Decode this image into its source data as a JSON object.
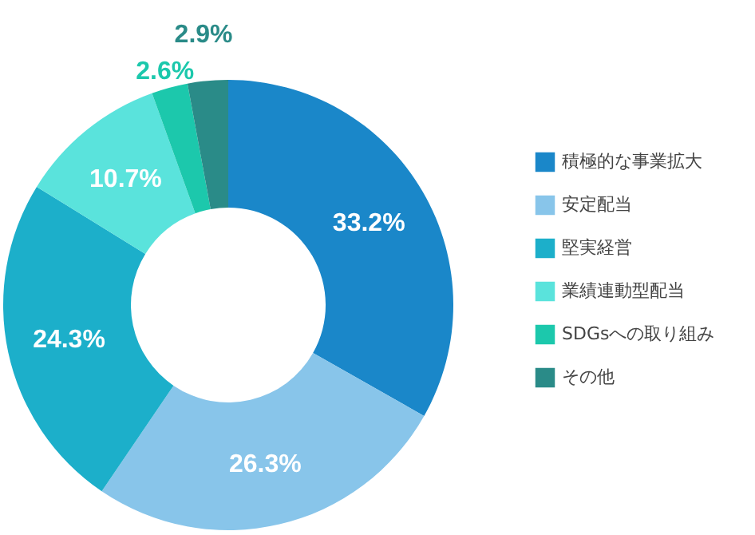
{
  "chart_data": {
    "type": "donut",
    "categories": [
      "積極的な事業拡大",
      "安定配当",
      "堅実経営",
      "業績連動型配当",
      "SDGsへの取り組み",
      "その他"
    ],
    "values": [
      33.2,
      26.3,
      24.3,
      10.7,
      2.6,
      2.9
    ],
    "colors": [
      "#1a87c9",
      "#88c5ea",
      "#1cafca",
      "#5ae3dc",
      "#1cc8ac",
      "#2a8b88"
    ],
    "value_labels": [
      "33.2%",
      "26.3%",
      "24.3%",
      "10.7%",
      "2.6%",
      "2.9%"
    ],
    "legend": "right"
  }
}
